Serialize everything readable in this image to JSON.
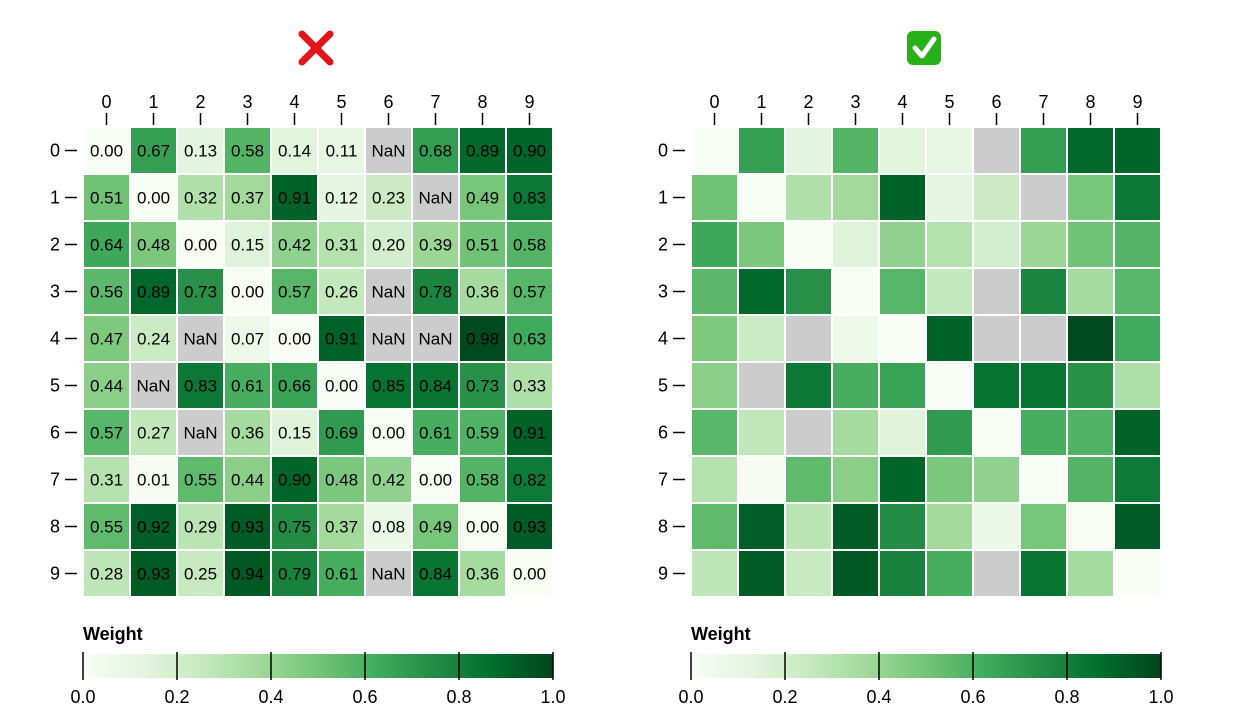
{
  "panels": [
    {
      "badge": "✖",
      "badge_label": "cross-mark-icon",
      "badge_color": "#e0161a",
      "show_values": true
    },
    {
      "badge": "✓",
      "badge_label": "check-mark-icon",
      "badge_color": "#27b01a",
      "show_values": false
    }
  ],
  "chart_data": [
    {
      "type": "heatmap",
      "rows": [
        "0",
        "1",
        "2",
        "3",
        "4",
        "5",
        "6",
        "7",
        "8",
        "9"
      ],
      "columns": [
        "0",
        "1",
        "2",
        "3",
        "4",
        "5",
        "6",
        "7",
        "8",
        "9"
      ],
      "values": [
        [
          "0.00",
          "0.67",
          "0.13",
          "0.58",
          "0.14",
          "0.11",
          "NaN",
          "0.68",
          "0.89",
          "0.90"
        ],
        [
          "0.51",
          "0.00",
          "0.32",
          "0.37",
          "0.91",
          "0.12",
          "0.23",
          "NaN",
          "0.49",
          "0.83"
        ],
        [
          "0.64",
          "0.48",
          "0.00",
          "0.15",
          "0.42",
          "0.31",
          "0.20",
          "0.39",
          "0.51",
          "0.58"
        ],
        [
          "0.56",
          "0.89",
          "0.73",
          "0.00",
          "0.57",
          "0.26",
          "NaN",
          "0.78",
          "0.36",
          "0.57"
        ],
        [
          "0.47",
          "0.24",
          "NaN",
          "0.07",
          "0.00",
          "0.91",
          "NaN",
          "NaN",
          "0.98",
          "0.63"
        ],
        [
          "0.44",
          "NaN",
          "0.83",
          "0.61",
          "0.66",
          "0.00",
          "0.85",
          "0.84",
          "0.73",
          "0.33"
        ],
        [
          "0.57",
          "0.27",
          "NaN",
          "0.36",
          "0.15",
          "0.69",
          "0.00",
          "0.61",
          "0.59",
          "0.91"
        ],
        [
          "0.31",
          "0.01",
          "0.55",
          "0.44",
          "0.90",
          "0.48",
          "0.42",
          "0.00",
          "0.58",
          "0.82"
        ],
        [
          "0.55",
          "0.92",
          "0.29",
          "0.93",
          "0.75",
          "0.37",
          "0.08",
          "0.49",
          "0.00",
          "0.93"
        ],
        [
          "0.28",
          "0.93",
          "0.25",
          "0.94",
          "0.79",
          "0.61",
          "NaN",
          "0.84",
          "0.36",
          "0.00"
        ]
      ],
      "value_labels_shown": true,
      "nan_color": "#cccccc",
      "colormap": "Greens",
      "colorbar": {
        "title": "Weight",
        "ticks": [
          "0.0",
          "0.2",
          "0.4",
          "0.6",
          "0.8",
          "1.0"
        ],
        "range": [
          0,
          1
        ]
      }
    },
    {
      "type": "heatmap",
      "rows": [
        "0",
        "1",
        "2",
        "3",
        "4",
        "5",
        "6",
        "7",
        "8",
        "9"
      ],
      "columns": [
        "0",
        "1",
        "2",
        "3",
        "4",
        "5",
        "6",
        "7",
        "8",
        "9"
      ],
      "values": [
        [
          "0.00",
          "0.67",
          "0.13",
          "0.58",
          "0.14",
          "0.11",
          "NaN",
          "0.68",
          "0.89",
          "0.90"
        ],
        [
          "0.51",
          "0.00",
          "0.32",
          "0.37",
          "0.91",
          "0.12",
          "0.23",
          "NaN",
          "0.49",
          "0.83"
        ],
        [
          "0.64",
          "0.48",
          "0.00",
          "0.15",
          "0.42",
          "0.31",
          "0.20",
          "0.39",
          "0.51",
          "0.58"
        ],
        [
          "0.56",
          "0.89",
          "0.73",
          "0.00",
          "0.57",
          "0.26",
          "NaN",
          "0.78",
          "0.36",
          "0.57"
        ],
        [
          "0.47",
          "0.24",
          "NaN",
          "0.07",
          "0.00",
          "0.91",
          "NaN",
          "NaN",
          "0.98",
          "0.63"
        ],
        [
          "0.44",
          "NaN",
          "0.83",
          "0.61",
          "0.66",
          "0.00",
          "0.85",
          "0.84",
          "0.73",
          "0.33"
        ],
        [
          "0.57",
          "0.27",
          "NaN",
          "0.36",
          "0.15",
          "0.69",
          "0.00",
          "0.61",
          "0.59",
          "0.91"
        ],
        [
          "0.31",
          "0.01",
          "0.55",
          "0.44",
          "0.90",
          "0.48",
          "0.42",
          "0.00",
          "0.58",
          "0.82"
        ],
        [
          "0.55",
          "0.92",
          "0.29",
          "0.93",
          "0.75",
          "0.37",
          "0.08",
          "0.49",
          "0.00",
          "0.93"
        ],
        [
          "0.28",
          "0.93",
          "0.25",
          "0.94",
          "0.79",
          "0.61",
          "NaN",
          "0.84",
          "0.36",
          "0.00"
        ]
      ],
      "value_labels_shown": false,
      "nan_color": "#cccccc",
      "colormap": "Greens",
      "colorbar": {
        "title": "Weight",
        "ticks": [
          "0.0",
          "0.2",
          "0.4",
          "0.6",
          "0.8",
          "1.0"
        ],
        "range": [
          0,
          1
        ]
      }
    }
  ]
}
